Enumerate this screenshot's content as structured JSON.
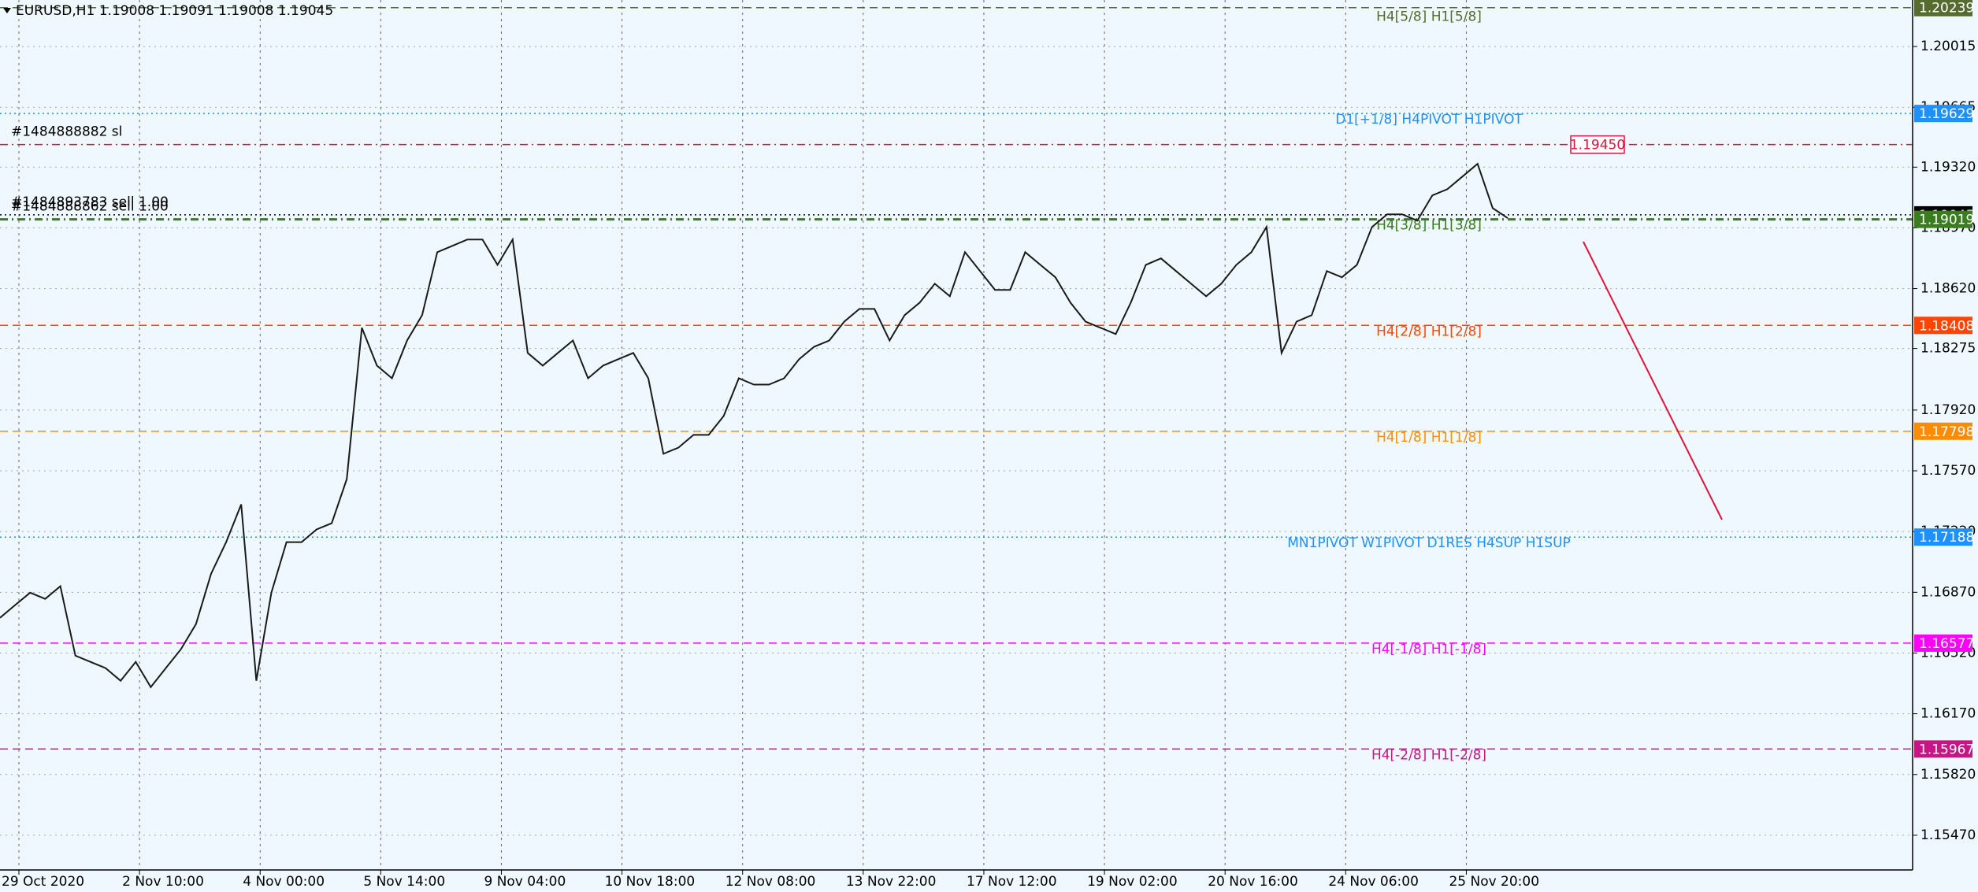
{
  "chart_data": {
    "type": "line",
    "title": "EURUSD,H1  1.19008 1.19091 1.19008 1.19045",
    "categories": [
      "29 Oct 2020",
      null,
      null,
      null,
      null,
      null,
      null,
      null,
      "2 Nov 10:00",
      null,
      null,
      null,
      null,
      null,
      null,
      null,
      "4 Nov 00:00",
      null,
      null,
      null,
      null,
      null,
      null,
      null,
      "5 Nov 14:00",
      null,
      null,
      null,
      null,
      null,
      null,
      null,
      "9 Nov 04:00",
      null,
      null,
      null,
      null,
      null,
      null,
      null,
      "10 Nov 18:00",
      null,
      null,
      null,
      null,
      null,
      null,
      null,
      "12 Nov 08:00",
      null,
      null,
      null,
      null,
      null,
      null,
      null,
      "13 Nov 22:00",
      null,
      null,
      null,
      null,
      null,
      null,
      null,
      "17 Nov 12:00",
      null,
      null,
      null,
      null,
      null,
      null,
      null,
      "19 Nov 02:00",
      null,
      null,
      null,
      null,
      null,
      null,
      null,
      "20 Nov 16:00",
      null,
      null,
      null,
      null,
      null,
      null,
      null,
      "24 Nov 06:00",
      null,
      null,
      null,
      null,
      null,
      null,
      null,
      "25 Nov 20:00",
      null,
      null,
      null,
      null
    ],
    "series": [
      {
        "color": "#1a1a1a",
        "values": [
          1.16723,
          1.16796,
          1.16868,
          1.16832,
          1.16905,
          1.16505,
          1.16469,
          1.16433,
          1.1636,
          1.16469,
          1.16324,
          1.16433,
          1.16542,
          1.16687,
          1.16977,
          1.17159,
          1.17377,
          1.1636,
          1.16868,
          1.17159,
          1.17159,
          1.17232,
          1.17268,
          1.17522,
          1.18394,
          1.18176,
          1.18103,
          1.18321,
          1.18467,
          1.1883,
          1.18866,
          1.18903,
          1.18903,
          1.18757,
          1.18903,
          1.18249,
          1.18176,
          1.18249,
          1.18321,
          1.18103,
          1.18176,
          1.18213,
          1.18249,
          1.18103,
          1.17668,
          1.17704,
          1.17777,
          1.17777,
          1.17886,
          1.18103,
          1.18067,
          1.18067,
          1.18103,
          1.18213,
          1.18285,
          1.18321,
          1.1843,
          1.18503,
          1.18503,
          1.18321,
          1.18467,
          1.18539,
          1.18648,
          1.18576,
          1.1883,
          1.18721,
          1.18612,
          1.18612,
          1.1883,
          1.18757,
          1.18685,
          1.18539,
          1.1843,
          1.18394,
          1.18358,
          1.18539,
          1.18757,
          1.18794,
          1.18721,
          1.18648,
          1.18576,
          1.18648,
          1.18757,
          1.1883,
          1.18975,
          1.18249,
          1.1843,
          1.18467,
          1.18721,
          1.18685,
          1.18757,
          1.18975,
          1.19048,
          1.19048,
          1.19012,
          1.19157,
          1.19193,
          1.19266,
          1.19339,
          1.19084,
          1.19026
        ]
      }
    ],
    "ylim": [
      1.1527,
      1.20283
    ],
    "yticks": [
      1.20015,
      1.19665,
      {
        "value": 1.1932,
        "label": "1.19320"
      },
      {
        "value": 1.1897,
        "label": "1.18970"
      },
      {
        "value": 1.1862,
        "label": "1.18620"
      },
      1.18275,
      {
        "value": 1.1792,
        "label": "1.17920"
      },
      {
        "value": 1.1757,
        "label": "1.17570"
      },
      {
        "value": 1.1722,
        "label": "1.17220"
      },
      {
        "value": 1.1687,
        "label": "1.16870"
      },
      {
        "value": 1.1652,
        "label": "1.16520"
      },
      {
        "value": 1.1617,
        "label": "1.16170"
      },
      {
        "value": 1.1582,
        "label": "1.15820"
      },
      {
        "value": 1.1547,
        "label": "1.15470"
      }
    ],
    "grid": true,
    "levels": [
      {
        "value": 1.20239,
        "color": "#556b2f",
        "style": "dashed",
        "text": "H4[5/8] H1[5/8]"
      },
      {
        "value": 1.19629,
        "color": "#1e90ff",
        "style": "dotted",
        "text": "D1[+1/8] H4PIVOT H1PIVOT"
      },
      {
        "value": 1.1945,
        "label": "1.19450",
        "color": "#dc143c",
        "style": "dashdot",
        "tag": "inside",
        "note": "#1484888882 sl"
      },
      {
        "value": 1.19045,
        "color": "#000000",
        "style": "dotted",
        "note": "#1484893783 sell 1.00"
      },
      {
        "value": 1.19019,
        "color": "#3a7d1e",
        "style": "dashdot",
        "text": "H4[3/8] H1[3/8]",
        "note": "#1484888862 sell 1.00"
      },
      {
        "value": 1.18408,
        "color": "#ff4500",
        "style": "dashed",
        "text": "H4[2/8] H1[2/8]"
      },
      {
        "value": 1.17798,
        "color": "#ff8c00",
        "style": "dashed",
        "text": "H4[1/8] H1[1/8]"
      },
      {
        "value": 1.17188,
        "color": "#1e90ff",
        "style": "dotted",
        "text": "MN1PIVOT W1PIVOT D1RES H4SUP H1SUP"
      },
      {
        "value": 1.16577,
        "color": "#ff00ff",
        "style": "dashed",
        "text": "H4[-1/8] H1[-1/8]"
      },
      {
        "value": 1.15967,
        "color": "#c71585",
        "style": "dashed",
        "text": "H4[-2/8] H1[-2/8]"
      }
    ]
  }
}
